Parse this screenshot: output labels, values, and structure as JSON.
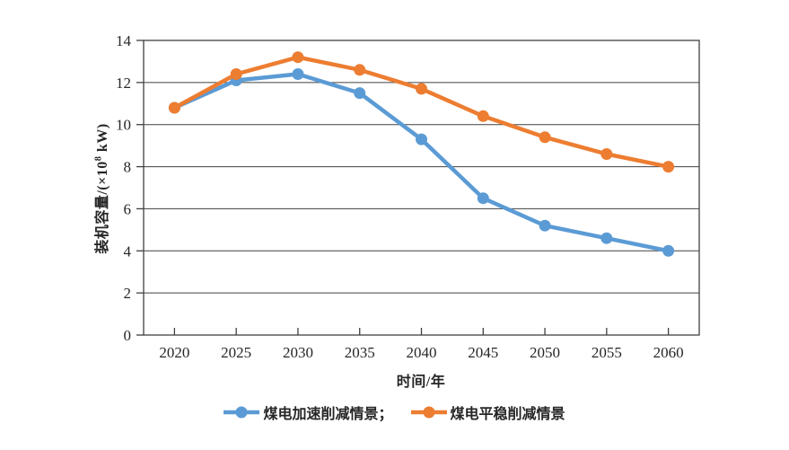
{
  "figure": {
    "background": "#ffffff",
    "axis_color": "#404040",
    "text_color": "#262626"
  },
  "chart_data": {
    "type": "line",
    "title": "",
    "categories": [
      "2020",
      "2025",
      "2030",
      "2035",
      "2040",
      "2045",
      "2050",
      "2055",
      "2060"
    ],
    "series": [
      {
        "name": "煤电加速削减情景",
        "legend_label": "煤电加速削减情景；",
        "color": "#5B9BD5",
        "marker": "circle",
        "values": [
          10.8,
          12.1,
          12.4,
          11.5,
          9.3,
          6.5,
          5.2,
          4.6,
          4.0
        ]
      },
      {
        "name": "煤电平稳削减情景",
        "legend_label": "煤电平稳削减情景",
        "color": "#ED7D31",
        "marker": "circle",
        "values": [
          10.8,
          12.4,
          13.2,
          12.6,
          11.7,
          10.4,
          9.4,
          8.6,
          8.0
        ]
      }
    ],
    "xlabel": "时间/年",
    "ylabel": "装机容量/(×10⁸ kW)",
    "ylabel_parts": {
      "pre": "装机容量/(×10",
      "sup": "8",
      "post": " kW)"
    },
    "ylim": [
      0,
      14
    ],
    "yticks": [
      0,
      2,
      4,
      6,
      8,
      10,
      12,
      14
    ],
    "grid": "horizontal",
    "legend_position": "bottom"
  }
}
